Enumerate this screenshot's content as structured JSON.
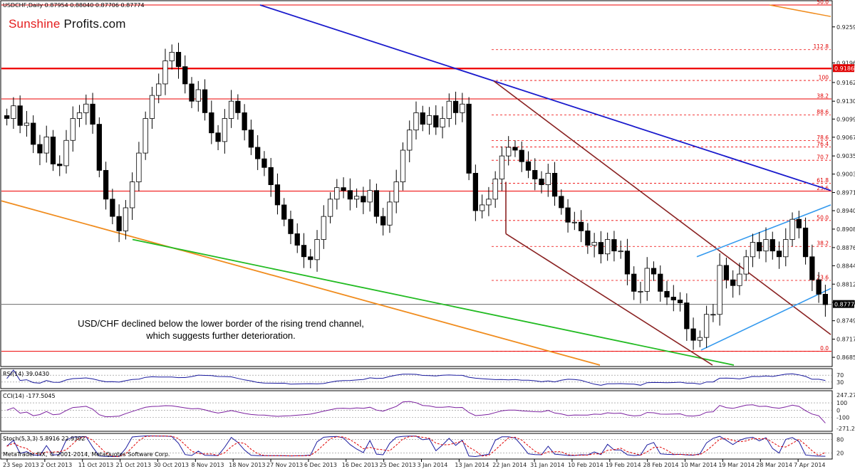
{
  "header": {
    "symbol_line": "USDCHF,Daily  0.87954 0.88040 0.87706 0.87774",
    "rsi_label": "RSI(14) 39.0430",
    "cci_label": "CCI(14) -177.5045",
    "stoch_label": "Stoch(5,3,3) 5.8916 22.9392",
    "copyright": "MetaTrader FIX, © 2001-2014, MetaQuotes Software Corp."
  },
  "logo": {
    "part1": "Sunshine",
    "part2": "Profits.com"
  },
  "annotation": "USD/CHF declined below the lower border of the rising trend channel, which suggests further deterioration.",
  "chart_data": {
    "type": "candlestick",
    "instrument": "USDCHF",
    "timeframe": "Daily",
    "last_price": "0.87774",
    "price_axis_labels": [
      "0.92590",
      "0.91965",
      "0.91625",
      "0.91300",
      "0.90990",
      "0.90675",
      "0.90350",
      "0.90035",
      "0.89715",
      "0.89400",
      "0.89080",
      "0.88760",
      "0.88445",
      "0.88125",
      "0.87810",
      "0.87490",
      "0.87170",
      "0.86855"
    ],
    "ylim": [
      0.8672,
      0.9297
    ],
    "price_marker_labels": [
      "0.91868",
      "0.87774"
    ],
    "date_labels": [
      "23 Sep 2013",
      "2 Oct 2013",
      "11 Oct 2013",
      "21 Oct 2013",
      "30 Oct 2013",
      "8 Nov 2013",
      "18 Nov 2013",
      "27 Nov 2013",
      "6 Dec 2013",
      "16 Dec 2013",
      "25 Dec 2013",
      "3 Jan 2014",
      "13 Jan 2014",
      "22 Jan 2014",
      "31 Jan 2014",
      "10 Feb 2014",
      "19 Feb 2014",
      "28 Feb 2014",
      "10 Mar 2014",
      "19 Mar 2014",
      "28 Mar 2014",
      "7 Apr 2014"
    ],
    "fibonacci_labels": [
      {
        "label": "50.0",
        "price": 0.9297
      },
      {
        "label": "112.8",
        "price": 0.92195
      },
      {
        "label": "100",
        "price": 0.9166
      },
      {
        "label": "38.2",
        "price": 0.9134
      },
      {
        "label": "88.6",
        "price": 0.9106
      },
      {
        "label": "78.6",
        "price": 0.90615
      },
      {
        "label": "76.4",
        "price": 0.90505
      },
      {
        "label": "70.7",
        "price": 0.90275
      },
      {
        "label": "61.8",
        "price": 0.89875
      },
      {
        "label": "23.6",
        "price": 0.8974
      },
      {
        "label": "50.0",
        "price": 0.8923
      },
      {
        "label": "38.2",
        "price": 0.8878
      },
      {
        "label": "23.6",
        "price": 0.8819
      },
      {
        "label": "0.0",
        "price": 0.8696
      }
    ],
    "close_series": [
      0.91,
      0.9122,
      0.9088,
      0.9092,
      0.9055,
      0.904,
      0.9068,
      0.9021,
      0.9018,
      0.9062,
      0.91,
      0.911,
      0.9125,
      0.909,
      0.901,
      0.896,
      0.893,
      0.8905,
      0.8945,
      0.899,
      0.904,
      0.91,
      0.914,
      0.916,
      0.92,
      0.9215,
      0.919,
      0.916,
      0.913,
      0.915,
      0.911,
      0.9075,
      0.906,
      0.91,
      0.913,
      0.911,
      0.908,
      0.905,
      0.903,
      0.9015,
      0.8985,
      0.895,
      0.8925,
      0.89,
      0.888,
      0.886,
      0.8855,
      0.889,
      0.893,
      0.896,
      0.898,
      0.8975,
      0.896,
      0.8965,
      0.8955,
      0.8975,
      0.893,
      0.8915,
      0.8955,
      0.899,
      0.9045,
      0.908,
      0.911,
      0.909,
      0.9105,
      0.9085,
      0.91,
      0.913,
      0.911,
      0.9125,
      0.9005,
      0.894,
      0.895,
      0.896,
      0.8995,
      0.9035,
      0.905,
      0.9045,
      0.9025,
      0.901,
      0.8995,
      0.8985,
      0.9005,
      0.8965,
      0.8945,
      0.892,
      0.892,
      0.8905,
      0.888,
      0.8885,
      0.8865,
      0.889,
      0.887,
      0.887,
      0.883,
      0.88,
      0.88,
      0.884,
      0.883,
      0.88,
      0.879,
      0.8785,
      0.878,
      0.8735,
      0.8715,
      0.872,
      0.876,
      0.876,
      0.8845,
      0.882,
      0.881,
      0.883,
      0.886,
      0.8885,
      0.887,
      0.889,
      0.887,
      0.886,
      0.889,
      0.8925,
      0.891,
      0.886,
      0.882,
      0.8795,
      0.8777
    ],
    "indicators": {
      "RSI": {
        "period": 14,
        "value": 39.043,
        "levels": [
          70,
          30
        ]
      },
      "CCI": {
        "period": 14,
        "value": -177.5045,
        "levels": [
          100,
          0,
          -100
        ],
        "range_labels": [
          "247.2714",
          "-271.2946"
        ]
      },
      "Stochastic": {
        "params": "5,3,3",
        "main": 5.8916,
        "signal": 22.9392,
        "levels": [
          80,
          20
        ]
      }
    },
    "colors": {
      "up_candle": "#ffffff",
      "down_candle": "#000000",
      "fib_lines": "#ee0000",
      "resistance": "#ee0000",
      "blue_trend": "#1a1acc",
      "brown_channel": "#8a2222",
      "green_trend": "#22bb22",
      "orange_trend": "#f08c1e",
      "rising_channel": "#3399ee",
      "indicator_line": "#7a1f9e"
    }
  }
}
